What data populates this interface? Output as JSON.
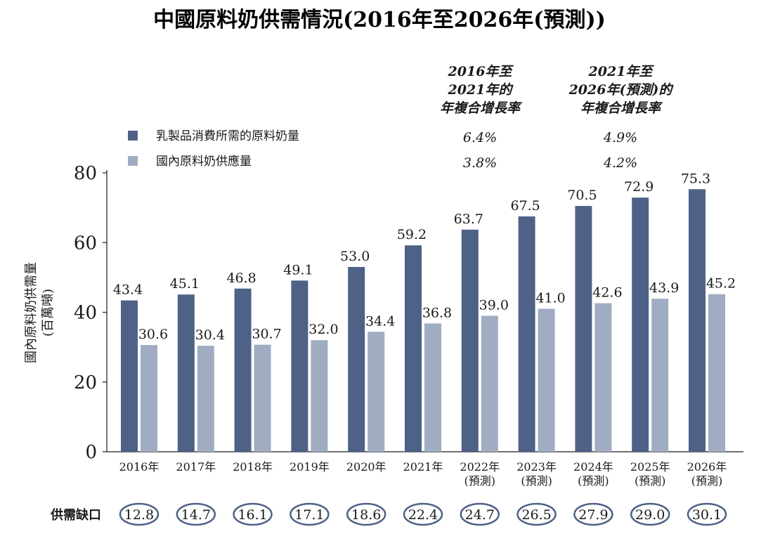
{
  "chart_data": {
    "type": "bar",
    "title": "中國原料奶供需情況(2016年至2026年(預測))",
    "ylabel_lines": [
      "國內原料奶供需量",
      "(百萬噸)"
    ],
    "xlabel": "",
    "ylim": [
      0,
      80
    ],
    "yticks": [
      0,
      20,
      40,
      60,
      80
    ],
    "grid": false,
    "legend_position": "top-left",
    "categories": [
      [
        "2016年"
      ],
      [
        "2017年"
      ],
      [
        "2018年"
      ],
      [
        "2019年"
      ],
      [
        "2020年"
      ],
      [
        "2021年"
      ],
      [
        "2022年",
        "(預測)"
      ],
      [
        "2023年",
        "(預測)"
      ],
      [
        "2024年",
        "(預測)"
      ],
      [
        "2025年",
        "(預測)"
      ],
      [
        "2026年",
        "(預測)"
      ]
    ],
    "series": [
      {
        "name": "乳製品消費所需的原料奶量",
        "color": "#4e6187",
        "values": [
          43.4,
          45.1,
          46.8,
          49.1,
          53.0,
          59.2,
          63.7,
          67.5,
          70.5,
          72.9,
          75.3
        ],
        "labels": [
          "43.4",
          "45.1",
          "46.8",
          "49.1",
          "53.0",
          "59.2",
          "63.7",
          "67.5",
          "70.5",
          "72.9",
          "75.3"
        ]
      },
      {
        "name": "國內原料奶供應量",
        "color": "#a0acc1",
        "values": [
          30.6,
          30.4,
          30.7,
          32.0,
          34.4,
          36.8,
          39.0,
          41.0,
          42.6,
          43.9,
          45.2
        ],
        "labels": [
          "30.6",
          "30.4",
          "30.7",
          "32.0",
          "34.4",
          "36.8",
          "39.0",
          "41.0",
          "42.6",
          "43.9",
          "45.2"
        ]
      }
    ],
    "cagr": {
      "columns": [
        {
          "header": [
            "2016年至",
            "2021年的",
            "年複合增長率"
          ],
          "values": [
            "6.4%",
            "3.8%"
          ]
        },
        {
          "header": [
            "2021年至",
            "2026年(預測)的",
            "年複合增長率"
          ],
          "values": [
            "4.9%",
            "4.2%"
          ]
        }
      ]
    },
    "gap": {
      "label": "供需缺口",
      "values": [
        "12.8",
        "14.7",
        "16.1",
        "17.1",
        "18.6",
        "22.4",
        "24.7",
        "26.5",
        "27.9",
        "29.0",
        "30.1"
      ]
    }
  },
  "colors": {
    "axis": "#1a1a1a",
    "gap_outline": "#4e6187",
    "text": "#1a1a1a"
  }
}
